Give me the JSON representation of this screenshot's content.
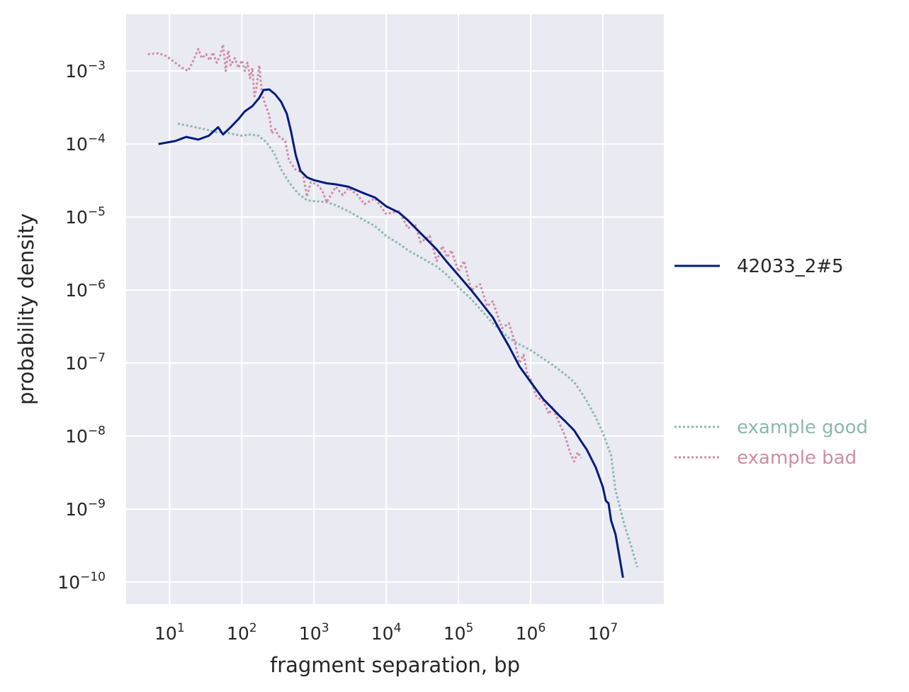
{
  "chart_data": {
    "type": "line",
    "x_scale": "log",
    "y_scale": "log",
    "xlabel": "fragment separation, bp",
    "ylabel": "probability density",
    "xlim": [
      2.5,
      70000000
    ],
    "ylim": [
      5e-11,
      0.006
    ],
    "grid": true,
    "x_ticks": [
      {
        "base": "10",
        "exp": "1",
        "value": 10
      },
      {
        "base": "10",
        "exp": "2",
        "value": 100
      },
      {
        "base": "10",
        "exp": "3",
        "value": 1000
      },
      {
        "base": "10",
        "exp": "4",
        "value": 10000
      },
      {
        "base": "10",
        "exp": "5",
        "value": 100000
      },
      {
        "base": "10",
        "exp": "6",
        "value": 1000000
      },
      {
        "base": "10",
        "exp": "7",
        "value": 10000000
      }
    ],
    "y_ticks": [
      {
        "base": "10",
        "exp": "−3",
        "value": 0.001
      },
      {
        "base": "10",
        "exp": "−4",
        "value": 0.0001
      },
      {
        "base": "10",
        "exp": "−5",
        "value": 1e-05
      },
      {
        "base": "10",
        "exp": "−6",
        "value": 1e-06
      },
      {
        "base": "10",
        "exp": "−7",
        "value": 1e-07
      },
      {
        "base": "10",
        "exp": "−8",
        "value": 1e-08
      },
      {
        "base": "10",
        "exp": "−9",
        "value": 1e-09
      },
      {
        "base": "10",
        "exp": "−10",
        "value": 1e-10
      }
    ],
    "legend": {
      "placement": "right, outside plot"
    },
    "series": [
      {
        "name": "42033_2#5",
        "color": "#001c7f",
        "style": "solid",
        "points": [
          [
            7,
            0.0001
          ],
          [
            12,
            0.00011
          ],
          [
            17,
            0.000125
          ],
          [
            25,
            0.000115
          ],
          [
            35,
            0.00013
          ],
          [
            47,
            0.00017
          ],
          [
            55,
            0.000135
          ],
          [
            70,
            0.00017
          ],
          [
            90,
            0.00022
          ],
          [
            110,
            0.00028
          ],
          [
            140,
            0.00033
          ],
          [
            175,
            0.00043
          ],
          [
            200,
            0.00055
          ],
          [
            240,
            0.00056
          ],
          [
            290,
            0.00048
          ],
          [
            350,
            0.00038
          ],
          [
            420,
            0.00026
          ],
          [
            480,
            0.00015
          ],
          [
            560,
            7e-05
          ],
          [
            650,
            4.3e-05
          ],
          [
            800,
            3.5e-05
          ],
          [
            1000,
            3.2e-05
          ],
          [
            1500,
            2.9e-05
          ],
          [
            2000,
            2.8e-05
          ],
          [
            3000,
            2.6e-05
          ],
          [
            5000,
            2.1e-05
          ],
          [
            7000,
            1.85e-05
          ],
          [
            10000,
            1.4e-05
          ],
          [
            15000,
            1.15e-05
          ],
          [
            20000,
            9e-06
          ],
          [
            30000,
            6e-06
          ],
          [
            40000,
            4.5e-06
          ],
          [
            50000,
            3.6e-06
          ],
          [
            70000,
            2.4e-06
          ],
          [
            100000,
            1.6e-06
          ],
          [
            150000,
            1e-06
          ],
          [
            200000,
            7e-07
          ],
          [
            300000,
            4.2e-07
          ],
          [
            400000,
            2.5e-07
          ],
          [
            500000,
            1.7e-07
          ],
          [
            700000,
            9e-08
          ],
          [
            1000000,
            5.5e-08
          ],
          [
            1500000,
            3.2e-08
          ],
          [
            2000000,
            2.4e-08
          ],
          [
            2500000,
            1.9e-08
          ],
          [
            3000000,
            1.6e-08
          ],
          [
            4000000,
            1.2e-08
          ],
          [
            5000000,
            8.5e-09
          ],
          [
            6000000,
            6.5e-09
          ],
          [
            8000000,
            3.7e-09
          ],
          [
            10000000,
            2e-09
          ],
          [
            11000000,
            1.3e-09
          ],
          [
            12000000,
            1.2e-09
          ],
          [
            13000000,
            7e-10
          ],
          [
            15000000,
            4.5e-10
          ],
          [
            17000000,
            2.2e-10
          ],
          [
            19000000,
            1.15e-10
          ]
        ]
      },
      {
        "name": "example good",
        "color": "#8bb8b0",
        "style": "dotted",
        "points": [
          [
            13,
            0.00019
          ],
          [
            20,
            0.000175
          ],
          [
            30,
            0.00016
          ],
          [
            45,
            0.000145
          ],
          [
            60,
            0.000145
          ],
          [
            80,
            0.000135
          ],
          [
            100,
            0.00013
          ],
          [
            130,
            0.000135
          ],
          [
            170,
            0.00013
          ],
          [
            220,
            0.000105
          ],
          [
            280,
            7.5e-05
          ],
          [
            350,
            4.5e-05
          ],
          [
            450,
            3e-05
          ],
          [
            600,
            2.1e-05
          ],
          [
            800,
            1.7e-05
          ],
          [
            1000,
            1.65e-05
          ],
          [
            1500,
            1.6e-05
          ],
          [
            2000,
            1.45e-05
          ],
          [
            3000,
            1.2e-05
          ],
          [
            5000,
            9e-06
          ],
          [
            7000,
            7.5e-06
          ],
          [
            10000,
            5.5e-06
          ],
          [
            15000,
            4.3e-06
          ],
          [
            20000,
            3.5e-06
          ],
          [
            30000,
            2.8e-06
          ],
          [
            50000,
            2.1e-06
          ],
          [
            70000,
            1.6e-06
          ],
          [
            100000,
            1.1e-06
          ],
          [
            150000,
            7.5e-07
          ],
          [
            200000,
            5.5e-07
          ],
          [
            300000,
            3.5e-07
          ],
          [
            500000,
            2.2e-07
          ],
          [
            700000,
            1.8e-07
          ],
          [
            1000000,
            1.5e-07
          ],
          [
            1500000,
            1.15e-07
          ],
          [
            2000000,
            9.5e-08
          ],
          [
            3000000,
            7e-08
          ],
          [
            4000000,
            5.5e-08
          ],
          [
            5000000,
            4e-08
          ],
          [
            6000000,
            3e-08
          ],
          [
            8000000,
            1.8e-08
          ],
          [
            10000000,
            1.1e-08
          ],
          [
            13000000,
            5.5e-09
          ],
          [
            15000000,
            1.8e-09
          ],
          [
            20000000,
            6e-10
          ],
          [
            25000000,
            3e-10
          ],
          [
            30000000,
            1.6e-10
          ]
        ]
      },
      {
        "name": "example bad",
        "color": "#d08ca4",
        "style": "dotted",
        "points": [
          [
            5,
            0.0017
          ],
          [
            7,
            0.00175
          ],
          [
            9,
            0.0016
          ],
          [
            12,
            0.0013
          ],
          [
            15,
            0.0011
          ],
          [
            18,
            0.001
          ],
          [
            21,
            0.00135
          ],
          [
            25,
            0.002
          ],
          [
            28,
            0.0015
          ],
          [
            32,
            0.0017
          ],
          [
            36,
            0.0014
          ],
          [
            40,
            0.0018
          ],
          [
            45,
            0.0013
          ],
          [
            50,
            0.0016
          ],
          [
            55,
            0.0023
          ],
          [
            60,
            0.001
          ],
          [
            65,
            0.0019
          ],
          [
            70,
            0.0012
          ],
          [
            80,
            0.0015
          ],
          [
            90,
            0.0011
          ],
          [
            100,
            0.0014
          ],
          [
            110,
            0.001
          ],
          [
            120,
            0.0013
          ],
          [
            130,
            0.0008
          ],
          [
            140,
            0.0011
          ],
          [
            150,
            0.00045
          ],
          [
            160,
            0.0006
          ],
          [
            175,
            0.0012
          ],
          [
            190,
            0.0005
          ],
          [
            210,
            0.00035
          ],
          [
            240,
            0.00025
          ],
          [
            260,
            0.00014
          ],
          [
            290,
            0.00016
          ],
          [
            320,
            0.00013
          ],
          [
            400,
            0.00011
          ],
          [
            450,
            6e-05
          ],
          [
            550,
            4.5e-05
          ],
          [
            700,
            4e-05
          ],
          [
            800,
            1.9e-05
          ],
          [
            900,
            3e-05
          ],
          [
            1100,
            2.8e-05
          ],
          [
            1300,
            2.3e-05
          ],
          [
            1500,
            1.6e-05
          ],
          [
            2000,
            2.6e-05
          ],
          [
            2500,
            2e-05
          ],
          [
            3000,
            2.5e-05
          ],
          [
            4000,
            2e-05
          ],
          [
            5000,
            1.5e-05
          ],
          [
            7000,
            1.8e-05
          ],
          [
            10000,
            1.1e-05
          ],
          [
            15000,
            1.2e-05
          ],
          [
            20000,
            7e-06
          ],
          [
            25000,
            8e-06
          ],
          [
            30000,
            4.5e-06
          ],
          [
            40000,
            5.5e-06
          ],
          [
            50000,
            2.5e-06
          ],
          [
            60000,
            4e-06
          ],
          [
            70000,
            2.8e-06
          ],
          [
            80000,
            3.5e-06
          ],
          [
            100000,
            1.8e-06
          ],
          [
            120000,
            2.5e-06
          ],
          [
            150000,
            1e-06
          ],
          [
            200000,
            1.2e-06
          ],
          [
            250000,
            6e-07
          ],
          [
            300000,
            7e-07
          ],
          [
            400000,
            3e-07
          ],
          [
            500000,
            3.5e-07
          ],
          [
            600000,
            2e-07
          ],
          [
            700000,
            1e-07
          ],
          [
            800000,
            1.3e-07
          ],
          [
            900000,
            7e-08
          ],
          [
            1000000,
            6e-08
          ],
          [
            1200000,
            3.5e-08
          ],
          [
            1500000,
            3e-08
          ],
          [
            1800000,
            2e-08
          ],
          [
            2000000,
            2.5e-08
          ],
          [
            2500000,
            1.5e-08
          ],
          [
            3000000,
            1e-08
          ],
          [
            3500000,
            6e-09
          ],
          [
            4000000,
            4.5e-09
          ],
          [
            4500000,
            6e-09
          ],
          [
            5000000,
            5e-09
          ]
        ]
      }
    ]
  }
}
